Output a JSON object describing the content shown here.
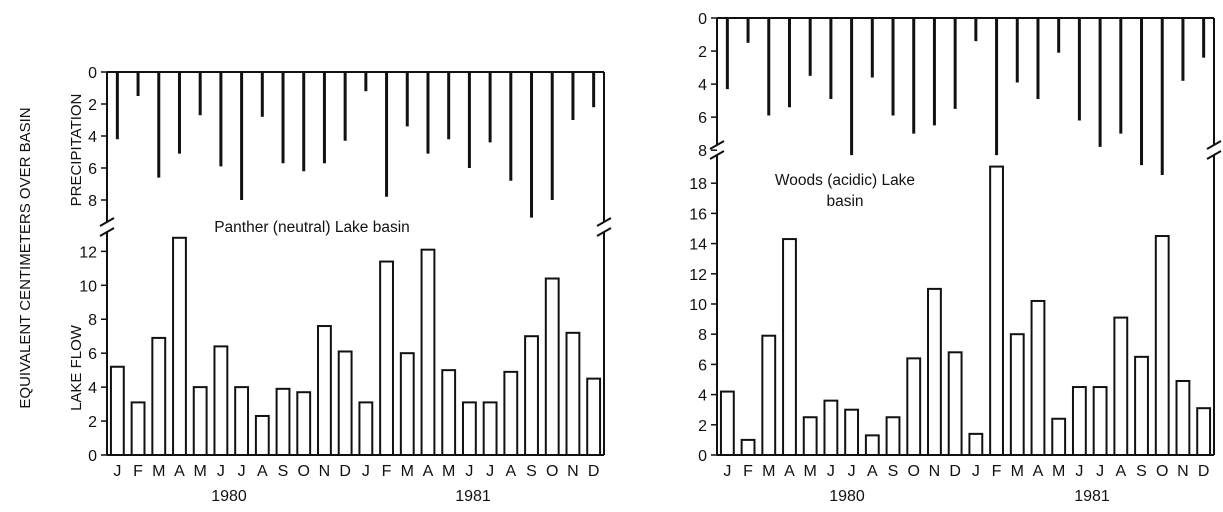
{
  "shared_ylabel": "EQUIVALENT CENTIMETERS OVER BASIN",
  "chart_data": [
    {
      "type": "bar",
      "title": "Panther (neutral) Lake basin",
      "precip_label": "PRECIPITATION",
      "flow_label": "LAKE FLOW",
      "months": [
        "J",
        "F",
        "M",
        "A",
        "M",
        "J",
        "J",
        "A",
        "S",
        "O",
        "N",
        "D",
        "J",
        "F",
        "M",
        "A",
        "M",
        "J",
        "J",
        "A",
        "S",
        "O",
        "N",
        "D"
      ],
      "years": [
        "1980",
        "1981"
      ],
      "precip_ylim": [
        0,
        9.5
      ],
      "precip_ticks": [
        "0",
        "2",
        "4",
        "6",
        "8"
      ],
      "flow_ylim": [
        0,
        13.2
      ],
      "flow_ticks": [
        "0",
        "2",
        "4",
        "6",
        "8",
        "10",
        "12"
      ],
      "series": [
        {
          "name": "PRECIPITATION",
          "values": [
            4.2,
            1.5,
            6.6,
            5.1,
            2.7,
            5.9,
            8.0,
            2.8,
            5.7,
            6.2,
            5.7,
            4.3,
            1.2,
            7.8,
            3.4,
            5.1,
            4.2,
            6.0,
            4.4,
            6.8,
            9.1,
            8.0,
            3.0,
            2.2
          ]
        },
        {
          "name": "LAKE FLOW",
          "values": [
            5.2,
            3.1,
            6.9,
            12.8,
            4.0,
            6.4,
            4.0,
            2.3,
            3.9,
            3.7,
            7.6,
            6.1,
            3.1,
            11.4,
            6.0,
            12.1,
            5.0,
            3.1,
            3.1,
            4.9,
            7.0,
            10.4,
            7.2,
            4.5
          ]
        }
      ],
      "axis_break": true
    },
    {
      "type": "bar",
      "title": "Woods (acidic) Lake\nbasin",
      "title_lines": [
        "Woods (acidic) Lake",
        "basin"
      ],
      "months": [
        "J",
        "F",
        "M",
        "A",
        "M",
        "J",
        "J",
        "A",
        "S",
        "O",
        "N",
        "D",
        "J",
        "F",
        "M",
        "A",
        "M",
        "J",
        "J",
        "A",
        "S",
        "O",
        "N",
        "D"
      ],
      "years": [
        "1980",
        "1981"
      ],
      "precip_ylim": [
        0,
        9.5
      ],
      "precip_ticks": [
        "0",
        "2",
        "4",
        "6",
        "8"
      ],
      "flow_ylim": [
        0,
        19.8
      ],
      "flow_ticks": [
        "0",
        "2",
        "4",
        "6",
        "8",
        "10",
        "12",
        "14",
        "16",
        "18"
      ],
      "series": [
        {
          "name": "PRECIPITATION",
          "values": [
            4.3,
            1.5,
            5.9,
            5.4,
            3.5,
            4.9,
            8.3,
            3.6,
            5.9,
            7.0,
            6.5,
            5.5,
            1.4,
            8.3,
            3.9,
            4.9,
            2.1,
            6.2,
            7.8,
            7.0,
            8.9,
            9.5,
            3.8,
            2.4
          ]
        },
        {
          "name": "LAKE FLOW",
          "values": [
            4.2,
            1.0,
            7.9,
            14.3,
            2.5,
            3.6,
            3.0,
            1.3,
            2.5,
            6.4,
            11.0,
            6.8,
            1.4,
            19.1,
            8.0,
            10.2,
            2.4,
            4.5,
            4.5,
            9.1,
            6.5,
            14.5,
            4.9,
            3.1
          ]
        }
      ],
      "axis_break": true
    }
  ]
}
